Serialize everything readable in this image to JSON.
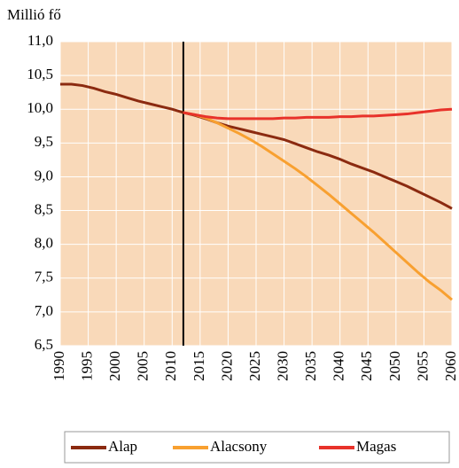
{
  "chart_data": {
    "type": "line",
    "ylabel": "Millió fő",
    "x": [
      1990,
      1992,
      1994,
      1996,
      1998,
      2000,
      2002,
      2004,
      2006,
      2008,
      2010,
      2012,
      2014,
      2016,
      2018,
      2020,
      2022,
      2024,
      2026,
      2028,
      2030,
      2032,
      2034,
      2036,
      2038,
      2040,
      2042,
      2044,
      2046,
      2048,
      2050,
      2052,
      2054,
      2056,
      2058,
      2060
    ],
    "series": [
      {
        "name": "Alap",
        "color": "#8b2a10",
        "values": [
          10.37,
          10.37,
          10.35,
          10.31,
          10.26,
          10.22,
          10.17,
          10.12,
          10.08,
          10.04,
          10.0,
          9.95,
          9.91,
          9.86,
          9.8,
          9.75,
          9.71,
          9.67,
          9.63,
          9.59,
          9.55,
          9.49,
          9.43,
          9.37,
          9.32,
          9.26,
          9.19,
          9.13,
          9.07,
          9.0,
          8.93,
          8.86,
          8.78,
          8.7,
          8.62,
          8.53
        ]
      },
      {
        "name": "Alacsony",
        "color": "#f8a030",
        "values": [
          null,
          null,
          null,
          null,
          null,
          null,
          null,
          null,
          null,
          null,
          null,
          9.95,
          9.92,
          9.87,
          9.8,
          9.72,
          9.64,
          9.55,
          9.45,
          9.34,
          9.23,
          9.12,
          9.0,
          8.87,
          8.74,
          8.6,
          8.46,
          8.32,
          8.18,
          8.03,
          7.88,
          7.73,
          7.58,
          7.44,
          7.32,
          7.18
        ]
      },
      {
        "name": "Magas",
        "color": "#e8322a",
        "values": [
          null,
          null,
          null,
          null,
          null,
          null,
          null,
          null,
          null,
          null,
          null,
          9.95,
          9.92,
          9.89,
          9.87,
          9.86,
          9.86,
          9.86,
          9.86,
          9.86,
          9.87,
          9.87,
          9.88,
          9.88,
          9.88,
          9.89,
          9.89,
          9.9,
          9.9,
          9.91,
          9.92,
          9.93,
          9.95,
          9.97,
          9.99,
          10.0
        ]
      }
    ],
    "vline": 2012,
    "xlim": [
      1990,
      2060
    ],
    "xticks": [
      1990,
      1995,
      2000,
      2005,
      2010,
      2015,
      2020,
      2025,
      2030,
      2035,
      2040,
      2045,
      2050,
      2055,
      2060
    ],
    "ylim": [
      6.5,
      11.0
    ],
    "yticks": [
      {
        "value": 6.5,
        "label": "6,5"
      },
      {
        "value": 7.0,
        "label": "7,0"
      },
      {
        "value": 7.5,
        "label": "7,5"
      },
      {
        "value": 8.0,
        "label": "8,0"
      },
      {
        "value": 8.5,
        "label": "8,5"
      },
      {
        "value": 9.0,
        "label": "9,0"
      },
      {
        "value": 9.5,
        "label": "9,5"
      },
      {
        "value": 10.0,
        "label": "10,0"
      },
      {
        "value": 10.5,
        "label": "10,5"
      },
      {
        "value": 11.0,
        "label": "11,0"
      }
    ],
    "grid": true,
    "background": "#f9d9b9",
    "legend": "bottom"
  }
}
